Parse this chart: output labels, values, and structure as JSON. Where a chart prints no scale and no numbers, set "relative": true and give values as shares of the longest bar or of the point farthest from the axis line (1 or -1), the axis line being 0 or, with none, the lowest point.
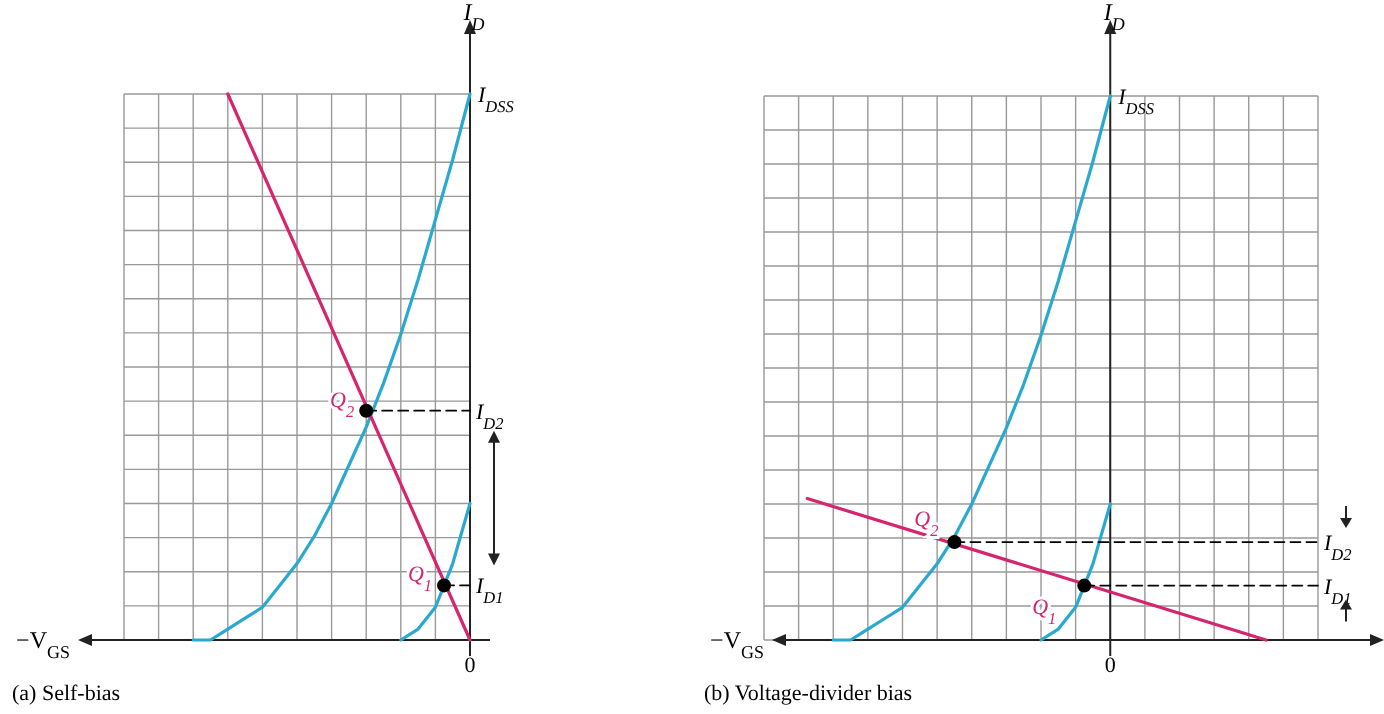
{
  "chart_data": [
    {
      "type": "line",
      "relative": true,
      "title": "(a) Self-bias",
      "xlabel": "−V$_{GS}$",
      "ylabel": "I$_{D}$",
      "grid": true,
      "categories": [
        null,
        null,
        null,
        null,
        null,
        null,
        null,
        null,
        null,
        null,
        null,
        null,
        null,
        null,
        null,
        null,
        null,
        null,
        null,
        null,
        null,
        null,
        null,
        null,
        null,
        null,
        null,
        null,
        null,
        null,
        null,
        null,
        null,
        null,
        null,
        null,
        null,
        null,
        null,
        null,
        null
      ],
      "series": [
        {
          "color": "#29a9cf",
          "values": [
            null,
            null,
            null,
            null,
            null,
            null,
            null,
            null,
            0,
            null,
            0,
            null,
            0.02,
            null,
            0.04,
            null,
            0.06,
            null,
            0.1,
            null,
            0.14,
            null,
            0.19,
            null,
            0.25,
            null,
            0.32,
            null,
            0.39,
            null,
            0.47,
            null,
            0.56,
            null,
            0.66,
            null,
            0.77,
            null,
            0.88,
            null,
            1
          ]
        },
        {
          "color": "#29a9cf",
          "values": [
            null,
            null,
            null,
            null,
            null,
            null,
            null,
            null,
            null,
            null,
            null,
            null,
            null,
            null,
            null,
            null,
            null,
            null,
            null,
            null,
            null,
            null,
            null,
            null,
            null,
            null,
            null,
            null,
            null,
            null,
            null,
            null,
            0,
            null,
            0.02,
            null,
            0.06,
            null,
            0.14,
            null,
            0.25
          ]
        },
        {
          "color": "#d6246e",
          "values": [
            null,
            null,
            null,
            null,
            null,
            null,
            null,
            null,
            null,
            null,
            null,
            null,
            1,
            null,
            null,
            null,
            null,
            null,
            null,
            null,
            null,
            null,
            null,
            null,
            null,
            null,
            null,
            null,
            null,
            null,
            null,
            null,
            null,
            null,
            null,
            null,
            null,
            null,
            null,
            null,
            0
          ]
        },
        {
          "color": "#000000",
          "line_style": "dashed",
          "values": [
            null,
            null,
            null,
            null,
            null,
            null,
            null,
            null,
            null,
            null,
            null,
            null,
            null,
            null,
            null,
            null,
            null,
            null,
            null,
            null,
            null,
            null,
            null,
            null,
            null,
            null,
            null,
            null,
            0.42,
            null,
            null,
            null,
            null,
            null,
            null,
            null,
            null,
            null,
            null,
            null,
            0.42
          ]
        },
        {
          "color": "#000000",
          "line_style": "dashed",
          "values": [
            null,
            null,
            null,
            null,
            null,
            null,
            null,
            null,
            null,
            null,
            null,
            null,
            null,
            null,
            null,
            null,
            null,
            null,
            null,
            null,
            null,
            null,
            null,
            null,
            null,
            null,
            null,
            null,
            null,
            null,
            null,
            null,
            null,
            null,
            null,
            null,
            null,
            0.1,
            null,
            null,
            0.1
          ]
        },
        {
          "name": "Q$_{2}$",
          "color": "#000000",
          "marker": "circle",
          "values": [
            null,
            null,
            null,
            null,
            null,
            null,
            null,
            null,
            null,
            null,
            null,
            null,
            null,
            null,
            null,
            null,
            null,
            null,
            null,
            null,
            null,
            null,
            null,
            null,
            null,
            null,
            null,
            null,
            0.42,
            null,
            null,
            null,
            null,
            null,
            null,
            null,
            null,
            null,
            null,
            null,
            null
          ]
        },
        {
          "name": "Q$_{1}$",
          "color": "#000000",
          "marker": "circle",
          "values": [
            null,
            null,
            null,
            null,
            null,
            null,
            null,
            null,
            null,
            null,
            null,
            null,
            null,
            null,
            null,
            null,
            null,
            null,
            null,
            null,
            null,
            null,
            null,
            null,
            null,
            null,
            null,
            null,
            null,
            null,
            null,
            null,
            null,
            null,
            null,
            null,
            null,
            0.1,
            null,
            null,
            null
          ]
        }
      ],
      "annotations": [
        "I$_{DSS}$",
        "I$_{D2}$",
        "I$_{D1}$",
        "0"
      ]
    },
    {
      "type": "line",
      "relative": true,
      "title": "(b) Voltage-divider bias",
      "xlabel": "−V$_{GS}$",
      "ylabel": "I$_{D}$",
      "grid": true,
      "categories": [
        null,
        null,
        null,
        null,
        null,
        null,
        null,
        null,
        null,
        null,
        null,
        null,
        null,
        null,
        null,
        null,
        null,
        null,
        null,
        null,
        null,
        null,
        null,
        null,
        null,
        null,
        null,
        null,
        null,
        null,
        null,
        null,
        null,
        null,
        null,
        null,
        null,
        null,
        null,
        null,
        null,
        null,
        null,
        null,
        null,
        null,
        null,
        null,
        null,
        null,
        null,
        null,
        null,
        null,
        null,
        null,
        null,
        null,
        null,
        null,
        null,
        null,
        null,
        null,
        null
      ],
      "series": [
        {
          "color": "#29a9cf",
          "values": [
            null,
            null,
            null,
            null,
            null,
            null,
            null,
            null,
            0,
            null,
            0,
            null,
            0.02,
            null,
            0.04,
            null,
            0.06,
            null,
            0.1,
            null,
            0.14,
            null,
            0.19,
            null,
            0.25,
            null,
            0.32,
            null,
            0.39,
            null,
            0.47,
            null,
            0.56,
            null,
            0.66,
            null,
            0.77,
            null,
            0.88,
            null,
            1,
            null,
            null,
            null,
            null,
            null,
            null,
            null,
            null,
            null,
            null,
            null,
            null,
            null,
            null,
            null,
            null,
            null,
            null,
            null,
            null,
            null,
            null,
            null,
            null
          ]
        },
        {
          "color": "#29a9cf",
          "values": [
            null,
            null,
            null,
            null,
            null,
            null,
            null,
            null,
            null,
            null,
            null,
            null,
            null,
            null,
            null,
            null,
            null,
            null,
            null,
            null,
            null,
            null,
            null,
            null,
            null,
            null,
            null,
            null,
            null,
            null,
            null,
            null,
            0,
            null,
            0.02,
            null,
            0.06,
            null,
            0.14,
            null,
            0.25,
            null,
            null,
            null,
            null,
            null,
            null,
            null,
            null,
            null,
            null,
            null,
            null,
            null,
            null,
            null,
            null,
            null,
            null,
            null,
            null,
            null,
            null,
            null,
            null
          ]
        },
        {
          "color": "#d6246e",
          "values": [
            null,
            null,
            null,
            null,
            null,
            0.26,
            null,
            null,
            null,
            null,
            null,
            null,
            null,
            null,
            null,
            null,
            null,
            null,
            null,
            null,
            null,
            null,
            null,
            null,
            null,
            null,
            null,
            null,
            null,
            null,
            null,
            null,
            null,
            null,
            null,
            null,
            null,
            null,
            null,
            null,
            null,
            null,
            null,
            null,
            null,
            null,
            null,
            null,
            null,
            null,
            null,
            null,
            null,
            null,
            null,
            null,
            null,
            null,
            0,
            null,
            null,
            null,
            null,
            null,
            null
          ]
        },
        {
          "color": "#000000",
          "line_style": "dashed",
          "values": [
            null,
            null,
            null,
            null,
            null,
            null,
            null,
            null,
            null,
            null,
            null,
            null,
            null,
            null,
            null,
            null,
            null,
            null,
            null,
            null,
            null,
            null,
            0.18,
            null,
            null,
            null,
            null,
            null,
            null,
            null,
            null,
            null,
            null,
            null,
            null,
            null,
            null,
            null,
            null,
            null,
            null,
            null,
            null,
            null,
            null,
            null,
            null,
            null,
            null,
            null,
            null,
            null,
            null,
            null,
            null,
            null,
            null,
            null,
            null,
            null,
            null,
            null,
            null,
            null,
            0.18
          ]
        },
        {
          "color": "#000000",
          "line_style": "dashed",
          "values": [
            null,
            null,
            null,
            null,
            null,
            null,
            null,
            null,
            null,
            null,
            null,
            null,
            null,
            null,
            null,
            null,
            null,
            null,
            null,
            null,
            null,
            null,
            null,
            null,
            null,
            null,
            null,
            null,
            null,
            null,
            null,
            null,
            null,
            null,
            null,
            null,
            null,
            0.1,
            null,
            null,
            null,
            null,
            null,
            null,
            null,
            null,
            null,
            null,
            null,
            null,
            null,
            null,
            null,
            null,
            null,
            null,
            null,
            null,
            null,
            null,
            null,
            null,
            null,
            null,
            0.1
          ]
        },
        {
          "name": "Q$_{2}$",
          "color": "#000000",
          "marker": "circle",
          "values": [
            null,
            null,
            null,
            null,
            null,
            null,
            null,
            null,
            null,
            null,
            null,
            null,
            null,
            null,
            null,
            null,
            null,
            null,
            null,
            null,
            null,
            null,
            0.18,
            null,
            null,
            null,
            null,
            null,
            null,
            null,
            null,
            null,
            null,
            null,
            null,
            null,
            null,
            null,
            null,
            null,
            null,
            null,
            null,
            null,
            null,
            null,
            null,
            null,
            null,
            null,
            null,
            null,
            null,
            null,
            null,
            null,
            null,
            null,
            null,
            null,
            null,
            null,
            null,
            null,
            null
          ]
        },
        {
          "name": "Q$_{1}$",
          "color": "#000000",
          "marker": "circle",
          "values": [
            null,
            null,
            null,
            null,
            null,
            null,
            null,
            null,
            null,
            null,
            null,
            null,
            null,
            null,
            null,
            null,
            null,
            null,
            null,
            null,
            null,
            null,
            null,
            null,
            null,
            null,
            null,
            null,
            null,
            null,
            null,
            null,
            null,
            null,
            null,
            null,
            null,
            0.1,
            null,
            null,
            null,
            null,
            null,
            null,
            null,
            null,
            null,
            null,
            null,
            null,
            null,
            null,
            null,
            null,
            null,
            null,
            null,
            null,
            null,
            null,
            null,
            null,
            null,
            null,
            null
          ]
        }
      ],
      "annotations": [
        "I$_{DSS}$",
        "I$_{D2}$",
        "I$_{D1}$",
        "0"
      ]
    }
  ]
}
